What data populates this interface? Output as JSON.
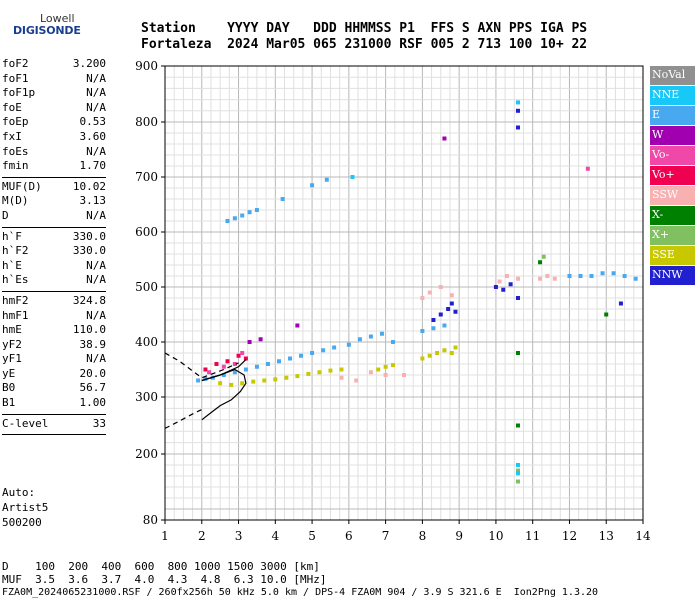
{
  "logo": {
    "line1": "Lowell",
    "line2": "DIGISONDE"
  },
  "header": {
    "row1": "Station    YYYY DAY   DDD HHMMSS P1  FFS S AXN PPS IGA PS",
    "row2": "Fortaleza  2024 Mar05 065 231000 RSF 005 2 713 100 10+ 22"
  },
  "params": [
    {
      "key": "foF2",
      "value": "3.200"
    },
    {
      "key": "foF1",
      "value": "N/A"
    },
    {
      "key": "foF1p",
      "value": "N/A"
    },
    {
      "key": "foE",
      "value": "N/A"
    },
    {
      "key": "foEp",
      "value": "0.53"
    },
    {
      "key": "fxI",
      "value": "3.60"
    },
    {
      "key": "foEs",
      "value": "N/A"
    },
    {
      "key": "fmin",
      "value": "1.70"
    },
    {
      "sep": true
    },
    {
      "key": "MUF(D)",
      "value": "10.02"
    },
    {
      "key": "M(D)",
      "value": "3.13"
    },
    {
      "key": "D",
      "value": "N/A"
    },
    {
      "sep": true
    },
    {
      "key": "h`F",
      "value": "330.0"
    },
    {
      "key": "h`F2",
      "value": "330.0"
    },
    {
      "key": "h`E",
      "value": "N/A"
    },
    {
      "key": "h`Es",
      "value": "N/A"
    },
    {
      "sep": true
    },
    {
      "key": "hmF2",
      "value": "324.8"
    },
    {
      "key": "hmF1",
      "value": "N/A"
    },
    {
      "key": "hmE",
      "value": "110.0"
    },
    {
      "key": "yF2",
      "value": "38.9"
    },
    {
      "key": "yF1",
      "value": "N/A"
    },
    {
      "key": "yE",
      "value": "20.0"
    },
    {
      "key": "B0",
      "value": "56.7"
    },
    {
      "key": "B1",
      "value": "1.00"
    },
    {
      "sep": true
    },
    {
      "key": "C-level",
      "value": "33"
    },
    {
      "sep": true
    }
  ],
  "auto": [
    "Auto:",
    "Artist5",
    "500200"
  ],
  "legend": [
    {
      "label": "NoVal",
      "color": "#909090"
    },
    {
      "label": "NNE",
      "color": "#18c8f8"
    },
    {
      "label": "E",
      "color": "#48a8f0"
    },
    {
      "label": "W",
      "color": "#a000b0"
    },
    {
      "label": "Vo-",
      "color": "#f048a8"
    },
    {
      "label": "Vo+",
      "color": "#f00050"
    },
    {
      "label": "SSW",
      "color": "#f8b0b0"
    },
    {
      "label": "X-",
      "color": "#008000"
    },
    {
      "label": "X+",
      "color": "#80c060"
    },
    {
      "label": "SSE",
      "color": "#c8c800"
    },
    {
      "label": "NNW",
      "color": "#2020d0"
    }
  ],
  "footer": {
    "row1": "D    100  200  400  600  800 1000 1500 3000 [km]",
    "row2": "MUF  3.5  3.6  3.7  4.0  4.3  4.8  6.3 10.0 [MHz]",
    "row3": "FZA0M_2024065231000.RSF / 260fx256h 50 kHz 5.0 km / DPS-4 FZA0M 904 / 3.9 S 321.6 E  Ion2Png 1.3.20"
  },
  "chart_data": {
    "type": "scatter",
    "xlim": [
      1,
      14
    ],
    "ylim": [
      80,
      900
    ],
    "x_ticks": [
      1,
      2,
      3,
      4,
      5,
      6,
      7,
      8,
      9,
      10,
      11,
      12,
      13,
      14
    ],
    "y_ticks": [
      80,
      200,
      300,
      400,
      500,
      600,
      700,
      800,
      900
    ],
    "grid": true,
    "series": [
      {
        "name": "E",
        "color": "#48a8f0",
        "points": [
          [
            1.9,
            330
          ],
          [
            2.1,
            333
          ],
          [
            2.3,
            335
          ],
          [
            2.6,
            340
          ],
          [
            2.9,
            345
          ],
          [
            3.2,
            350
          ],
          [
            3.5,
            355
          ],
          [
            3.8,
            360
          ],
          [
            4.1,
            365
          ],
          [
            4.4,
            370
          ],
          [
            4.7,
            375
          ],
          [
            5.0,
            380
          ],
          [
            5.3,
            385
          ],
          [
            5.6,
            390
          ],
          [
            6.0,
            395
          ],
          [
            6.3,
            405
          ],
          [
            6.6,
            410
          ],
          [
            6.9,
            415
          ],
          [
            7.2,
            400
          ],
          [
            8.0,
            420
          ],
          [
            8.3,
            425
          ],
          [
            8.6,
            430
          ],
          [
            2.7,
            620
          ],
          [
            2.9,
            625
          ],
          [
            3.1,
            630
          ],
          [
            3.3,
            636
          ],
          [
            3.5,
            640
          ],
          [
            4.2,
            660
          ],
          [
            5.0,
            685
          ],
          [
            5.4,
            695
          ],
          [
            12.0,
            520
          ],
          [
            12.3,
            520
          ],
          [
            12.6,
            520
          ],
          [
            12.9,
            525
          ],
          [
            13.2,
            525
          ],
          [
            13.5,
            520
          ],
          [
            13.8,
            515
          ]
        ]
      },
      {
        "name": "SSE",
        "color": "#c8c800",
        "points": [
          [
            2.5,
            325
          ],
          [
            2.8,
            322
          ],
          [
            3.1,
            325
          ],
          [
            3.4,
            328
          ],
          [
            3.7,
            330
          ],
          [
            4.0,
            332
          ],
          [
            4.3,
            335
          ],
          [
            4.6,
            338
          ],
          [
            4.9,
            342
          ],
          [
            5.2,
            345
          ],
          [
            5.5,
            348
          ],
          [
            5.8,
            350
          ],
          [
            6.8,
            350
          ],
          [
            7.0,
            355
          ],
          [
            7.2,
            358
          ],
          [
            8.0,
            370
          ],
          [
            8.2,
            375
          ],
          [
            8.4,
            380
          ],
          [
            8.6,
            385
          ],
          [
            8.8,
            380
          ],
          [
            8.9,
            390
          ]
        ]
      },
      {
        "name": "SSW",
        "color": "#f8b0b0",
        "points": [
          [
            5.8,
            335
          ],
          [
            6.2,
            330
          ],
          [
            6.6,
            345
          ],
          [
            7.0,
            340
          ],
          [
            7.5,
            340
          ],
          [
            8.0,
            480
          ],
          [
            8.2,
            490
          ],
          [
            8.5,
            500
          ],
          [
            8.8,
            485
          ],
          [
            10.1,
            510
          ],
          [
            10.3,
            520
          ],
          [
            10.6,
            515
          ],
          [
            11.2,
            515
          ],
          [
            11.4,
            520
          ],
          [
            11.6,
            515
          ]
        ]
      },
      {
        "name": "NNW",
        "color": "#2020d0",
        "points": [
          [
            8.3,
            440
          ],
          [
            8.5,
            450
          ],
          [
            8.7,
            460
          ],
          [
            8.9,
            455
          ],
          [
            8.8,
            470
          ],
          [
            10.0,
            500
          ],
          [
            10.2,
            495
          ],
          [
            10.4,
            505
          ],
          [
            10.6,
            480
          ],
          [
            13.4,
            470
          ],
          [
            10.6,
            790
          ],
          [
            10.6,
            820
          ]
        ]
      },
      {
        "name": "Vo+",
        "color": "#f00050",
        "points": [
          [
            2.1,
            350
          ],
          [
            2.4,
            360
          ],
          [
            2.7,
            365
          ],
          [
            3.0,
            375
          ],
          [
            3.2,
            370
          ]
        ]
      },
      {
        "name": "Vo-",
        "color": "#f048a8",
        "points": [
          [
            2.2,
            345
          ],
          [
            2.6,
            355
          ],
          [
            2.9,
            360
          ],
          [
            3.1,
            380
          ],
          [
            12.5,
            715
          ]
        ]
      },
      {
        "name": "W",
        "color": "#a000b0",
        "points": [
          [
            3.3,
            400
          ],
          [
            3.6,
            405
          ],
          [
            4.6,
            430
          ],
          [
            8.6,
            770
          ]
        ]
      },
      {
        "name": "X-",
        "color": "#008000",
        "points": [
          [
            10.6,
            380
          ],
          [
            10.6,
            250
          ],
          [
            11.2,
            545
          ],
          [
            13.0,
            450
          ]
        ]
      },
      {
        "name": "X+",
        "color": "#80c060",
        "points": [
          [
            10.6,
            170
          ],
          [
            10.6,
            150
          ],
          [
            11.3,
            555
          ]
        ]
      },
      {
        "name": "NNE",
        "color": "#18c8f8",
        "points": [
          [
            10.6,
            835
          ],
          [
            10.6,
            180
          ],
          [
            10.6,
            165
          ],
          [
            6.1,
            700
          ]
        ]
      }
    ],
    "profile_lines": {
      "color": "#000000",
      "solid": [
        [
          2.0,
          260
        ],
        [
          2.2,
          270
        ],
        [
          2.5,
          285
        ],
        [
          2.8,
          295
        ],
        [
          3.05,
          310
        ],
        [
          3.2,
          325
        ],
        [
          3.15,
          340
        ],
        [
          2.9,
          350
        ],
        [
          2.5,
          340
        ],
        [
          2.0,
          330
        ]
      ],
      "upper": [
        [
          2.0,
          330
        ],
        [
          2.5,
          340
        ],
        [
          3.0,
          355
        ],
        [
          3.2,
          368
        ]
      ],
      "dashed_lower": [
        [
          1.0,
          245
        ],
        [
          1.4,
          258
        ],
        [
          1.8,
          272
        ],
        [
          2.0,
          278
        ]
      ],
      "dashed_upper": [
        [
          1.0,
          380
        ],
        [
          1.4,
          365
        ],
        [
          1.8,
          345
        ],
        [
          2.0,
          335
        ],
        [
          2.6,
          350
        ],
        [
          3.0,
          362
        ]
      ]
    }
  }
}
